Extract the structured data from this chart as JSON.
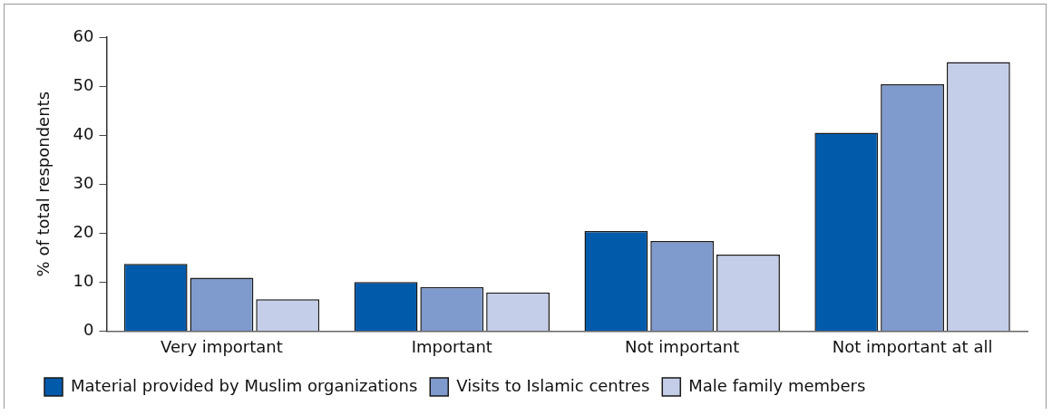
{
  "chart_data": {
    "type": "bar",
    "ylabel": "% of total respondents",
    "categories": [
      "Very important",
      "Important",
      "Not important",
      "Not important at all"
    ],
    "series": [
      {
        "name": "Material provided by Muslim organizations",
        "color": "#025aab",
        "values": [
          13.7,
          10.0,
          20.4,
          40.5
        ]
      },
      {
        "name": "Visits to Islamic centres",
        "color": "#7f9acc",
        "values": [
          10.9,
          9.0,
          18.4,
          50.4
        ]
      },
      {
        "name": "Male family members",
        "color": "#c4cee8",
        "values": [
          6.5,
          7.9,
          15.6,
          54.9
        ]
      }
    ],
    "ylim": [
      0,
      60
    ],
    "yticks": [
      0,
      10,
      20,
      30,
      40,
      50,
      60
    ],
    "grid": false,
    "legend": "bottom"
  }
}
